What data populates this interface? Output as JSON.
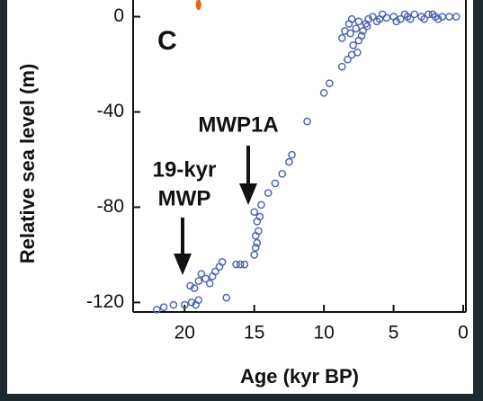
{
  "chart_data": {
    "type": "scatter",
    "x_label": "Age (kyr BP)",
    "y_label": "Relative sea level (m)",
    "annotations": [
      "C",
      "MWP1A",
      "19-kyr",
      "MWP"
    ],
    "xlim": [
      23.7,
      0
    ],
    "ylim": [
      -124,
      7
    ],
    "xticks": [
      20,
      15,
      10,
      5,
      0
    ],
    "yticks": [
      0,
      -40,
      -80,
      -120
    ],
    "series": [
      {
        "color": "#4a5fb0",
        "x": [
          22,
          21.5,
          20.8,
          20,
          19.5,
          19.2,
          19,
          19.6,
          19.3,
          19,
          18.8,
          18.5,
          18.2,
          18,
          17.8,
          17.5,
          17.3,
          17,
          16.3,
          16,
          15.7,
          15,
          14.9,
          14.8,
          14.9,
          14.7,
          14.8,
          14.6,
          15,
          14.5,
          14,
          13.5,
          13,
          12.5,
          12.3,
          11.2,
          10,
          9.6,
          8.7,
          8.3,
          8,
          7.9,
          7.6,
          7.5,
          7.7,
          8.5,
          8.7,
          8.2,
          8,
          7.5,
          7,
          6.8,
          6.5,
          6,
          5.5,
          5,
          4.5,
          4,
          3.5,
          3,
          2.5,
          2,
          1.5,
          1,
          0.5,
          7.2,
          6.9,
          6.2,
          5.8,
          4.8,
          4.2,
          3.8,
          2.8,
          2.2,
          1.8,
          7.3,
          8.1
        ],
        "values": [
          -123,
          -122,
          -121,
          -121,
          -120,
          -121,
          -119,
          -113,
          -114,
          -111,
          -108,
          -110,
          -112,
          -109,
          -107,
          -105,
          -103,
          -118,
          -104,
          -104,
          -104,
          -100,
          -97,
          -95,
          -92,
          -90,
          -86,
          -84,
          -82,
          -79,
          -74,
          -70,
          -66,
          -61,
          -58,
          -44,
          -32,
          -28,
          -21,
          -18,
          -16,
          -12,
          -15,
          -10,
          -5,
          -6,
          -9,
          -3,
          -1,
          -2,
          -3,
          -1,
          0,
          -1,
          -0.5,
          0,
          -1,
          0,
          1,
          0,
          1,
          0,
          0,
          0,
          0,
          -6,
          -4,
          -2,
          1,
          -2,
          1,
          -1,
          -1,
          1,
          -1,
          -8,
          -7
        ]
      },
      {
        "color": "#e8641e",
        "x": [
          19
        ],
        "values": [
          5
        ]
      }
    ]
  }
}
